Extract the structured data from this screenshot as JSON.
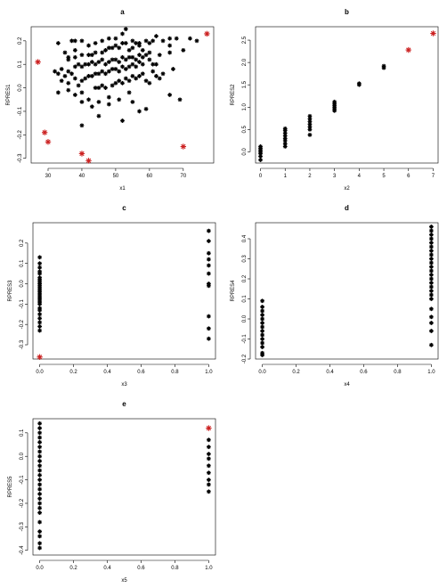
{
  "chart_data": [
    {
      "type": "scatter",
      "title": "a",
      "xlabel": "x1",
      "ylabel": "RPRES1",
      "xlim": [
        25,
        79
      ],
      "ylim": [
        -0.32,
        0.26
      ],
      "xticks": [
        30,
        40,
        50,
        60,
        70
      ],
      "yticks": [
        -0.3,
        -0.2,
        -0.1,
        0.0,
        0.1,
        0.2
      ],
      "marker_color": "#000000",
      "highlight_color": "#cc2222",
      "points": [
        [
          33,
          0.19
        ],
        [
          35,
          0.15
        ],
        [
          37,
          0.2
        ],
        [
          38,
          0.2
        ],
        [
          40,
          0.2
        ],
        [
          42,
          0.18
        ],
        [
          44,
          0.19
        ],
        [
          46,
          0.2
        ],
        [
          48,
          0.21
        ],
        [
          50,
          0.21
        ],
        [
          52,
          0.23
        ],
        [
          53,
          0.25
        ],
        [
          55,
          0.2
        ],
        [
          57,
          0.19
        ],
        [
          59,
          0.2
        ],
        [
          62,
          0.22
        ],
        [
          66,
          0.21
        ],
        [
          68,
          0.21
        ],
        [
          72,
          0.21
        ],
        [
          74,
          0.2
        ],
        [
          36,
          0.13
        ],
        [
          38,
          0.13
        ],
        [
          40,
          0.14
        ],
        [
          42,
          0.14
        ],
        [
          43,
          0.14
        ],
        [
          44,
          0.15
        ],
        [
          46,
          0.15
        ],
        [
          47,
          0.16
        ],
        [
          48,
          0.17
        ],
        [
          49,
          0.17
        ],
        [
          50,
          0.18
        ],
        [
          51,
          0.17
        ],
        [
          52,
          0.19
        ],
        [
          53,
          0.19
        ],
        [
          54,
          0.16
        ],
        [
          55,
          0.17
        ],
        [
          56,
          0.19
        ],
        [
          57,
          0.18
        ],
        [
          58,
          0.16
        ],
        [
          60,
          0.19
        ],
        [
          61,
          0.2
        ],
        [
          64,
          0.2
        ],
        [
          66,
          0.18
        ],
        [
          70,
          0.16
        ],
        [
          32,
          0.07
        ],
        [
          33,
          0.06
        ],
        [
          34,
          0.08
        ],
        [
          35,
          0.05
        ],
        [
          36,
          0.07
        ],
        [
          37,
          0.06
        ],
        [
          38,
          0.09
        ],
        [
          39,
          0.1
        ],
        [
          40,
          0.09
        ],
        [
          41,
          0.1
        ],
        [
          42,
          0.1
        ],
        [
          43,
          0.11
        ],
        [
          44,
          0.1
        ],
        [
          45,
          0.11
        ],
        [
          46,
          0.12
        ],
        [
          47,
          0.1
        ],
        [
          48,
          0.11
        ],
        [
          49,
          0.12
        ],
        [
          50,
          0.12
        ],
        [
          51,
          0.11
        ],
        [
          52,
          0.13
        ],
        [
          53,
          0.12
        ],
        [
          54,
          0.13
        ],
        [
          55,
          0.13
        ],
        [
          56,
          0.12
        ],
        [
          57,
          0.14
        ],
        [
          58,
          0.13
        ],
        [
          59,
          0.14
        ],
        [
          60,
          0.15
        ],
        [
          63,
          0.14
        ],
        [
          66,
          0.15
        ],
        [
          34,
          0.03
        ],
        [
          36,
          0.02
        ],
        [
          38,
          0.04
        ],
        [
          39,
          0.01
        ],
        [
          40,
          0.03
        ],
        [
          41,
          0.04
        ],
        [
          42,
          0.05
        ],
        [
          43,
          0.05
        ],
        [
          44,
          0.06
        ],
        [
          45,
          0.06
        ],
        [
          46,
          0.07
        ],
        [
          47,
          0.06
        ],
        [
          48,
          0.07
        ],
        [
          49,
          0.08
        ],
        [
          50,
          0.08
        ],
        [
          51,
          0.07
        ],
        [
          52,
          0.09
        ],
        [
          53,
          0.08
        ],
        [
          54,
          0.09
        ],
        [
          55,
          0.1
        ],
        [
          56,
          0.09
        ],
        [
          57,
          0.11
        ],
        [
          58,
          0.1
        ],
        [
          60,
          0.12
        ],
        [
          61,
          0.1
        ],
        [
          62,
          0.1
        ],
        [
          33,
          -0.02
        ],
        [
          36,
          -0.01
        ],
        [
          38,
          -0.03
        ],
        [
          40,
          -0.02
        ],
        [
          42,
          -0.05
        ],
        [
          44,
          0.0
        ],
        [
          45,
          0.0
        ],
        [
          46,
          0.01
        ],
        [
          47,
          0.0
        ],
        [
          48,
          -0.04
        ],
        [
          49,
          0.01
        ],
        [
          50,
          0.02
        ],
        [
          51,
          0.03
        ],
        [
          52,
          0.02
        ],
        [
          53,
          0.04
        ],
        [
          54,
          0.03
        ],
        [
          55,
          0.05
        ],
        [
          56,
          0.04
        ],
        [
          57,
          0.05
        ],
        [
          58,
          0.06
        ],
        [
          59,
          0.03
        ],
        [
          60,
          0.02
        ],
        [
          61,
          0.07
        ],
        [
          62,
          0.05
        ],
        [
          63,
          0.04
        ],
        [
          64,
          0.06
        ],
        [
          67,
          0.08
        ],
        [
          40,
          -0.06
        ],
        [
          43,
          -0.08
        ],
        [
          45,
          -0.06
        ],
        [
          48,
          -0.07
        ],
        [
          51,
          -0.05
        ],
        [
          55,
          -0.06
        ],
        [
          57,
          -0.1
        ],
        [
          59,
          -0.09
        ],
        [
          66,
          -0.03
        ],
        [
          69,
          -0.05
        ],
        [
          40,
          -0.16
        ],
        [
          45,
          -0.12
        ],
        [
          52,
          -0.14
        ],
        [
          54,
          -0.02
        ],
        [
          36,
          0.12
        ],
        [
          38,
          0.16
        ]
      ],
      "highlights": [
        [
          27,
          0.11
        ],
        [
          29,
          -0.19
        ],
        [
          30,
          -0.23
        ],
        [
          40,
          -0.28
        ],
        [
          42,
          -0.31
        ],
        [
          70,
          -0.25
        ],
        [
          77,
          0.23
        ]
      ]
    },
    {
      "type": "scatter",
      "title": "b",
      "xlabel": "x2",
      "ylabel": "RPRES2",
      "xlim": [
        -0.2,
        7.2
      ],
      "ylim": [
        -0.25,
        2.8
      ],
      "xticks": [
        0,
        1,
        2,
        3,
        4,
        5,
        6,
        7
      ],
      "yticks": [
        0.0,
        0.5,
        1.0,
        1.5,
        2.0,
        2.5
      ],
      "marker_color": "#000000",
      "highlight_color": "#cc2222",
      "points": [
        [
          0,
          -0.18
        ],
        [
          0,
          -0.1
        ],
        [
          0,
          -0.04
        ],
        [
          0,
          0.0
        ],
        [
          0,
          0.04
        ],
        [
          0,
          0.08
        ],
        [
          0,
          0.12
        ],
        [
          1,
          0.12
        ],
        [
          1,
          0.18
        ],
        [
          1,
          0.25
        ],
        [
          1,
          0.3
        ],
        [
          1,
          0.36
        ],
        [
          1,
          0.42
        ],
        [
          1,
          0.48
        ],
        [
          1,
          0.52
        ],
        [
          2,
          0.38
        ],
        [
          2,
          0.5
        ],
        [
          2,
          0.56
        ],
        [
          2,
          0.62
        ],
        [
          2,
          0.68
        ],
        [
          2,
          0.74
        ],
        [
          2,
          0.8
        ],
        [
          3,
          0.92
        ],
        [
          3,
          0.96
        ],
        [
          3,
          1.0
        ],
        [
          3,
          1.04
        ],
        [
          3,
          1.08
        ],
        [
          3,
          1.12
        ],
        [
          4,
          1.5
        ],
        [
          4,
          1.53
        ],
        [
          5,
          1.88
        ],
        [
          5,
          1.92
        ]
      ],
      "highlights": [
        [
          6,
          2.28
        ],
        [
          7,
          2.65
        ]
      ]
    },
    {
      "type": "scatter",
      "title": "c",
      "xlabel": "x3",
      "ylabel": "RPRES3",
      "xlim": [
        -0.04,
        1.04
      ],
      "ylim": [
        -0.37,
        0.3
      ],
      "xticks": [
        0.0,
        0.2,
        0.4,
        0.6,
        0.8,
        1.0
      ],
      "yticks": [
        -0.3,
        -0.2,
        -0.1,
        0.0,
        0.1,
        0.2
      ],
      "marker_color": "#000000",
      "highlight_color": "#cc2222",
      "points": [
        [
          0,
          0.13
        ],
        [
          0,
          0.1
        ],
        [
          0,
          0.08
        ],
        [
          0,
          0.06
        ],
        [
          0,
          0.05
        ],
        [
          0,
          0.03
        ],
        [
          0,
          0.02
        ],
        [
          0,
          0.01
        ],
        [
          0,
          0.0
        ],
        [
          0,
          -0.01
        ],
        [
          0,
          -0.02
        ],
        [
          0,
          -0.03
        ],
        [
          0,
          -0.04
        ],
        [
          0,
          -0.05
        ],
        [
          0,
          -0.06
        ],
        [
          0,
          -0.07
        ],
        [
          0,
          -0.08
        ],
        [
          0,
          -0.09
        ],
        [
          0,
          -0.1
        ],
        [
          0,
          -0.12
        ],
        [
          0,
          -0.13
        ],
        [
          0,
          -0.15
        ],
        [
          0,
          -0.17
        ],
        [
          0,
          -0.19
        ],
        [
          0,
          -0.21
        ],
        [
          0,
          -0.23
        ],
        [
          1,
          0.26
        ],
        [
          1,
          0.21
        ],
        [
          1,
          0.15
        ],
        [
          1,
          0.12
        ],
        [
          1,
          0.09
        ],
        [
          1,
          0.05
        ],
        [
          1,
          0.0
        ],
        [
          1,
          -0.01
        ],
        [
          1,
          -0.16
        ],
        [
          1,
          -0.27
        ],
        [
          1,
          -0.22
        ]
      ],
      "highlights": [
        [
          0,
          -0.36
        ]
      ]
    },
    {
      "type": "scatter",
      "title": "d",
      "xlabel": "x4",
      "ylabel": "RPRES4",
      "xlim": [
        -0.04,
        1.04
      ],
      "ylim": [
        -0.2,
        0.48
      ],
      "xticks": [
        0.0,
        0.2,
        0.4,
        0.6,
        0.8,
        1.0
      ],
      "yticks": [
        -0.2,
        -0.1,
        0.0,
        0.1,
        0.2,
        0.3,
        0.4
      ],
      "marker_color": "#000000",
      "highlight_color": "#cc2222",
      "points": [
        [
          0,
          0.09
        ],
        [
          0,
          0.06
        ],
        [
          0,
          0.04
        ],
        [
          0,
          0.02
        ],
        [
          0,
          0.0
        ],
        [
          0,
          -0.02
        ],
        [
          0,
          -0.04
        ],
        [
          0,
          -0.06
        ],
        [
          0,
          -0.08
        ],
        [
          0,
          -0.1
        ],
        [
          0,
          -0.12
        ],
        [
          0,
          -0.14
        ],
        [
          0,
          -0.17
        ],
        [
          0,
          -0.18
        ],
        [
          1,
          0.46
        ],
        [
          1,
          0.44
        ],
        [
          1,
          0.42
        ],
        [
          1,
          0.4
        ],
        [
          1,
          0.38
        ],
        [
          1,
          0.36
        ],
        [
          1,
          0.34
        ],
        [
          1,
          0.32
        ],
        [
          1,
          0.3
        ],
        [
          1,
          0.28
        ],
        [
          1,
          0.26
        ],
        [
          1,
          0.24
        ],
        [
          1,
          0.22
        ],
        [
          1,
          0.2
        ],
        [
          1,
          0.18
        ],
        [
          1,
          0.16
        ],
        [
          1,
          0.14
        ],
        [
          1,
          0.12
        ],
        [
          1,
          0.1
        ],
        [
          1,
          0.05
        ],
        [
          1,
          0.01
        ],
        [
          1,
          -0.02
        ],
        [
          1,
          -0.06
        ],
        [
          1,
          -0.13
        ]
      ],
      "highlights": []
    },
    {
      "type": "scatter",
      "title": "e",
      "xlabel": "x5",
      "ylabel": "RPRES5",
      "xlim": [
        -0.04,
        1.04
      ],
      "ylim": [
        -0.42,
        0.16
      ],
      "xticks": [
        0.0,
        0.2,
        0.4,
        0.6,
        0.8,
        1.0
      ],
      "yticks": [
        -0.4,
        -0.3,
        -0.2,
        -0.1,
        0.0,
        0.1
      ],
      "marker_color": "#000000",
      "highlight_color": "#cc2222",
      "points": [
        [
          0,
          0.14
        ],
        [
          0,
          0.12
        ],
        [
          0,
          0.1
        ],
        [
          0,
          0.08
        ],
        [
          0,
          0.06
        ],
        [
          0,
          0.04
        ],
        [
          0,
          0.02
        ],
        [
          0,
          0.0
        ],
        [
          0,
          -0.02
        ],
        [
          0,
          -0.04
        ],
        [
          0,
          -0.06
        ],
        [
          0,
          -0.08
        ],
        [
          0,
          -0.1
        ],
        [
          0,
          -0.12
        ],
        [
          0,
          -0.14
        ],
        [
          0,
          -0.16
        ],
        [
          0,
          -0.18
        ],
        [
          0,
          -0.2
        ],
        [
          0,
          -0.22
        ],
        [
          0,
          -0.24
        ],
        [
          0,
          -0.28
        ],
        [
          0,
          -0.32
        ],
        [
          0,
          -0.34
        ],
        [
          0,
          -0.37
        ],
        [
          0,
          -0.39
        ],
        [
          1,
          0.07
        ],
        [
          1,
          0.04
        ],
        [
          1,
          0.01
        ],
        [
          1,
          -0.01
        ],
        [
          1,
          -0.04
        ],
        [
          1,
          -0.07
        ],
        [
          1,
          -0.1
        ],
        [
          1,
          -0.12
        ],
        [
          1,
          -0.15
        ]
      ],
      "highlights": [
        [
          1,
          0.12
        ]
      ]
    }
  ]
}
